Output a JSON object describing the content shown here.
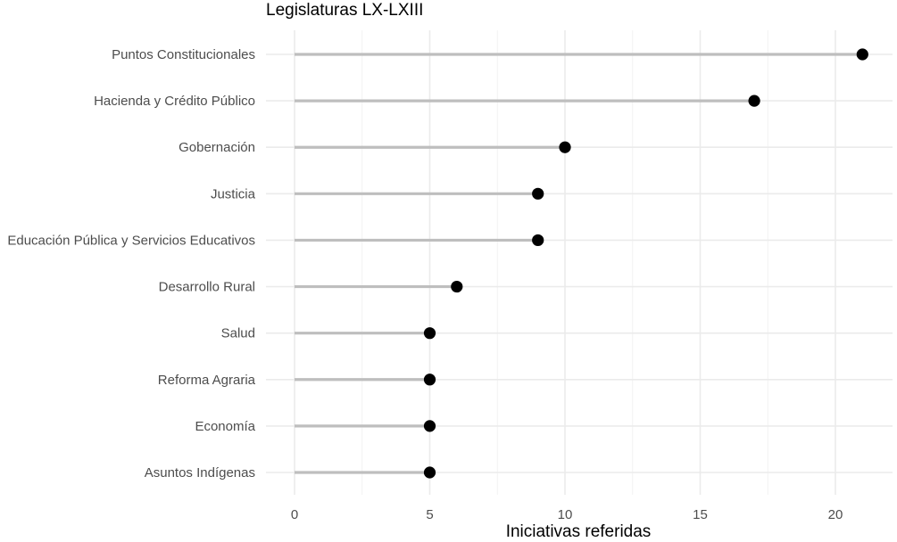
{
  "chart_data": {
    "type": "lollipop",
    "title": "Legislaturas LX-LXIII",
    "xlabel": "Iniciativas referidas",
    "ylabel": "",
    "xlim": [
      0,
      21.2
    ],
    "xticks": [
      0,
      5,
      10,
      15,
      20
    ],
    "grid": true,
    "categories": [
      "Puntos Constitucionales",
      "Hacienda y Crédito Público",
      "Gobernación",
      "Justicia",
      "Educación Pública y Servicios Educativos",
      "Desarrollo Rural",
      "Salud",
      "Reforma Agraria",
      "Economía",
      "Asuntos Indígenas"
    ],
    "values": [
      21,
      17,
      10,
      9,
      9,
      6,
      5,
      5,
      5,
      5
    ],
    "colors": {
      "stem": "#bebebe",
      "point": "#000000",
      "grid_major": "#ebebeb",
      "grid_minor": "#f2f2f2",
      "tick_text": "#4d4d4d"
    }
  }
}
